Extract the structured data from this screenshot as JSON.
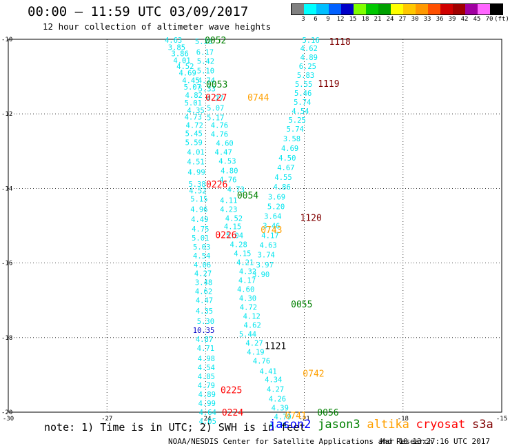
{
  "header": {
    "title": "00:00 – 11:59 UTC 03/09/2017",
    "subtitle": "12 hour collection of altimeter wave heights"
  },
  "colorbar": {
    "labels": [
      "3",
      "6",
      "9",
      "12",
      "15",
      "18",
      "21",
      "24",
      "27",
      "30",
      "33",
      "36",
      "39",
      "42",
      "45",
      "70",
      "(ft)"
    ],
    "colors": [
      "#808080",
      "#00ffff",
      "#00bfff",
      "#0060ff",
      "#0000c8",
      "#80ff00",
      "#00c800",
      "#00a000",
      "#ffff00",
      "#ffc800",
      "#ff9900",
      "#ff5000",
      "#d00000",
      "#a00000",
      "#a000a0",
      "#ff66ff",
      "#000000"
    ]
  },
  "footer": {
    "note": "note: 1) Time is in UTC; 2) SWH is in feet",
    "satellites": [
      {
        "name": "jason2",
        "color": "#0000ff"
      },
      {
        "name": "jason3",
        "color": "#008000"
      },
      {
        "name": "altika",
        "color": "#ffa000"
      },
      {
        "name": "cryosat",
        "color": "#ff0000"
      },
      {
        "name": "s3a",
        "color": "#800000"
      }
    ],
    "credit": "NOAA/NESDIS Center for Satellite Applications and Research",
    "timestamp": "Mar 10 13:27:16 UTC 2017"
  },
  "chart_data": {
    "type": "scatter",
    "title": "12 hour collection of altimeter wave heights",
    "x_ticks": [
      "-30",
      "-27",
      "-24",
      "-21",
      "-18",
      "-15"
    ],
    "y_ticks": [
      "-10",
      "-12",
      "-14",
      "-16",
      "-18",
      "-20"
    ],
    "xlim": [
      -30,
      -15
    ],
    "ylim": [
      -20,
      -10
    ],
    "grid": true,
    "legend_placement": "bottom",
    "unit": "ft",
    "swh_points": [
      {
        "x": -24.98,
        "y": -10.02,
        "v": "4.63"
      },
      {
        "x": -24.88,
        "y": -10.21,
        "v": "3.85"
      },
      {
        "x": -24.78,
        "y": -10.38,
        "v": "3.86"
      },
      {
        "x": -24.72,
        "y": -10.56,
        "v": "4.01"
      },
      {
        "x": -24.62,
        "y": -10.72,
        "v": "4.52"
      },
      {
        "x": -24.55,
        "y": -10.9,
        "v": "4.69"
      },
      {
        "x": -24.45,
        "y": -11.1,
        "v": "4.45"
      },
      {
        "x": -24.4,
        "y": -11.28,
        "v": "5.07"
      },
      {
        "x": -24.36,
        "y": -11.5,
        "v": "4.82"
      },
      {
        "x": -24.38,
        "y": -11.7,
        "v": "5.01"
      },
      {
        "x": -24.3,
        "y": -11.9,
        "v": "4.35"
      },
      {
        "x": -24.38,
        "y": -12.08,
        "v": "4.73"
      },
      {
        "x": -24.34,
        "y": -12.3,
        "v": "4.72"
      },
      {
        "x": -24.36,
        "y": -12.52,
        "v": "5.45"
      },
      {
        "x": -24.36,
        "y": -12.76,
        "v": "5.59"
      },
      {
        "x": -24.3,
        "y": -13.02,
        "v": "4.01"
      },
      {
        "x": -24.3,
        "y": -13.28,
        "v": "4.51"
      },
      {
        "x": -24.28,
        "y": -13.56,
        "v": "4.99"
      },
      {
        "x": -24.26,
        "y": -13.88,
        "v": "5.38"
      },
      {
        "x": -24.24,
        "y": -14.06,
        "v": "4.52"
      },
      {
        "x": -24.2,
        "y": -14.28,
        "v": "5.15"
      },
      {
        "x": -24.2,
        "y": -14.56,
        "v": "4.96"
      },
      {
        "x": -24.18,
        "y": -14.82,
        "v": "4.49"
      },
      {
        "x": -24.16,
        "y": -15.08,
        "v": "4.75"
      },
      {
        "x": -24.16,
        "y": -15.32,
        "v": "5.01"
      },
      {
        "x": -24.12,
        "y": -15.56,
        "v": "5.03"
      },
      {
        "x": -24.12,
        "y": -15.8,
        "v": "4.54"
      },
      {
        "x": -24.1,
        "y": -16.04,
        "v": "4.06"
      },
      {
        "x": -24.08,
        "y": -16.28,
        "v": "4.27"
      },
      {
        "x": -24.06,
        "y": -16.52,
        "v": "3.48"
      },
      {
        "x": -24.06,
        "y": -16.76,
        "v": "4.62"
      },
      {
        "x": -24.04,
        "y": -17.0,
        "v": "4.47"
      },
      {
        "x": -24.04,
        "y": -17.28,
        "v": "4.35"
      },
      {
        "x": -24.0,
        "y": -17.56,
        "v": "5.30"
      },
      {
        "x": -24.04,
        "y": -18.04,
        "v": "4.87"
      },
      {
        "x": -24.0,
        "y": -18.28,
        "v": "4.71"
      },
      {
        "x": -23.98,
        "y": -18.56,
        "v": "4.98"
      },
      {
        "x": -23.98,
        "y": -18.8,
        "v": "4.54"
      },
      {
        "x": -23.98,
        "y": -19.04,
        "v": "4.85"
      },
      {
        "x": -23.98,
        "y": -19.28,
        "v": "4.79"
      },
      {
        "x": -23.96,
        "y": -19.52,
        "v": "4.89"
      },
      {
        "x": -23.96,
        "y": -19.76,
        "v": "4.99"
      },
      {
        "x": -23.94,
        "y": -20.0,
        "v": "4.64"
      },
      {
        "x": -23.94,
        "y": -20.24,
        "v": "4.05"
      },
      {
        "x": -24.06,
        "y": -10.06,
        "v": "5.38"
      },
      {
        "x": -24.02,
        "y": -10.34,
        "v": "6.17"
      },
      {
        "x": -24.0,
        "y": -10.58,
        "v": "5.42"
      },
      {
        "x": -24.0,
        "y": -10.84,
        "v": "5.10"
      },
      {
        "x": -23.98,
        "y": -11.1,
        "v": "4.74"
      },
      {
        "x": -23.96,
        "y": -11.32,
        "v": "5.33"
      },
      {
        "x": -23.72,
        "y": -11.58,
        "v": "4.77"
      },
      {
        "x": -23.7,
        "y": -11.84,
        "v": "5.07"
      },
      {
        "x": -23.7,
        "y": -12.1,
        "v": "5.17"
      },
      {
        "x": -23.58,
        "y": -12.3,
        "v": "4.76"
      },
      {
        "x": -23.58,
        "y": -12.54,
        "v": "4.76"
      },
      {
        "x": -23.42,
        "y": -12.78,
        "v": "4.60"
      },
      {
        "x": -23.46,
        "y": -13.02,
        "v": "4.47"
      },
      {
        "x": -23.34,
        "y": -13.26,
        "v": "4.53"
      },
      {
        "x": -23.28,
        "y": -13.52,
        "v": "4.80"
      },
      {
        "x": -23.32,
        "y": -13.76,
        "v": "4.76"
      },
      {
        "x": -23.08,
        "y": -14.02,
        "v": "4.73"
      },
      {
        "x": -23.3,
        "y": -14.32,
        "v": "4.11"
      },
      {
        "x": -23.3,
        "y": -14.56,
        "v": "4.23"
      },
      {
        "x": -23.14,
        "y": -14.8,
        "v": "4.52"
      },
      {
        "x": -23.18,
        "y": -15.02,
        "v": "4.15"
      },
      {
        "x": -23.12,
        "y": -15.26,
        "v": "5.04"
      },
      {
        "x": -23.0,
        "y": -15.5,
        "v": "4.28"
      },
      {
        "x": -22.88,
        "y": -15.74,
        "v": "4.15"
      },
      {
        "x": -22.8,
        "y": -15.98,
        "v": "4.21"
      },
      {
        "x": -22.72,
        "y": -16.22,
        "v": "4.32"
      },
      {
        "x": -22.74,
        "y": -16.46,
        "v": "4.17"
      },
      {
        "x": -22.78,
        "y": -16.7,
        "v": "4.60"
      },
      {
        "x": -22.72,
        "y": -16.94,
        "v": "4.30"
      },
      {
        "x": -22.7,
        "y": -17.18,
        "v": "4.72"
      },
      {
        "x": -22.6,
        "y": -17.42,
        "v": "4.12"
      },
      {
        "x": -22.58,
        "y": -17.66,
        "v": "4.62"
      },
      {
        "x": -22.72,
        "y": -17.9,
        "v": "5.44"
      },
      {
        "x": -22.52,
        "y": -18.14,
        "v": "4.27"
      },
      {
        "x": -22.48,
        "y": -18.38,
        "v": "4.19"
      },
      {
        "x": -22.3,
        "y": -18.62,
        "v": "4.76"
      },
      {
        "x": -22.1,
        "y": -18.9,
        "v": "4.41"
      },
      {
        "x": -21.94,
        "y": -19.12,
        "v": "4.34"
      },
      {
        "x": -21.88,
        "y": -19.38,
        "v": "4.27"
      },
      {
        "x": -21.82,
        "y": -19.64,
        "v": "4.26"
      },
      {
        "x": -21.74,
        "y": -19.88,
        "v": "4.39"
      },
      {
        "x": -21.66,
        "y": -20.12,
        "v": "4.79"
      },
      {
        "x": -21.8,
        "y": -20.34,
        "v": "4.76"
      },
      {
        "x": -20.8,
        "y": -10.02,
        "v": "5.16"
      },
      {
        "x": -20.86,
        "y": -10.24,
        "v": "4.62"
      },
      {
        "x": -20.86,
        "y": -10.48,
        "v": "4.89"
      },
      {
        "x": -20.9,
        "y": -10.72,
        "v": "6.25"
      },
      {
        "x": -20.96,
        "y": -10.96,
        "v": "5.83"
      },
      {
        "x": -21.02,
        "y": -11.2,
        "v": "5.55"
      },
      {
        "x": -21.04,
        "y": -11.44,
        "v": "5.46"
      },
      {
        "x": -21.06,
        "y": -11.68,
        "v": "5.74"
      },
      {
        "x": -21.12,
        "y": -11.92,
        "v": "4.54"
      },
      {
        "x": -21.22,
        "y": -12.16,
        "v": "5.25"
      },
      {
        "x": -21.28,
        "y": -12.4,
        "v": "5.74"
      },
      {
        "x": -21.38,
        "y": -12.66,
        "v": "3.58"
      },
      {
        "x": -21.44,
        "y": -12.92,
        "v": "4.69"
      },
      {
        "x": -21.52,
        "y": -13.18,
        "v": "4.50"
      },
      {
        "x": -21.56,
        "y": -13.44,
        "v": "4.67"
      },
      {
        "x": -21.64,
        "y": -13.7,
        "v": "4.55"
      },
      {
        "x": -21.68,
        "y": -13.96,
        "v": "4.86"
      },
      {
        "x": -21.84,
        "y": -14.22,
        "v": "3.69"
      },
      {
        "x": -21.86,
        "y": -14.48,
        "v": "5.20"
      },
      {
        "x": -21.96,
        "y": -14.74,
        "v": "3.64"
      },
      {
        "x": -22.0,
        "y": -15.0,
        "v": "3.46"
      },
      {
        "x": -22.04,
        "y": -15.26,
        "v": "4.17"
      },
      {
        "x": -22.1,
        "y": -15.52,
        "v": "4.63"
      },
      {
        "x": -22.16,
        "y": -15.78,
        "v": "3.74"
      },
      {
        "x": -22.2,
        "y": -16.04,
        "v": "3.97"
      },
      {
        "x": -22.32,
        "y": -16.3,
        "v": "3.90"
      },
      {
        "x": -24.06,
        "y": -17.8,
        "v": "10.35"
      }
    ],
    "passes": [
      {
        "id": "0052",
        "x": -23.7,
        "y": -10.02,
        "sat": "jason3"
      },
      {
        "id": "0053",
        "x": -23.66,
        "y": -11.2,
        "sat": "jason3"
      },
      {
        "id": "0227",
        "x": -23.68,
        "y": -11.55,
        "sat": "cryosat"
      },
      {
        "id": "0744",
        "x": -22.4,
        "y": -11.55,
        "sat": "altika"
      },
      {
        "id": "0226",
        "x": -23.66,
        "y": -13.88,
        "sat": "cryosat"
      },
      {
        "id": "0054",
        "x": -22.72,
        "y": -14.18,
        "sat": "jason3"
      },
      {
        "id": "0743",
        "x": -22.0,
        "y": -15.1,
        "sat": "altika"
      },
      {
        "id": "0226",
        "x": -23.38,
        "y": -15.24,
        "sat": "cryosat"
      },
      {
        "id": "0055",
        "x": -21.08,
        "y": -17.1,
        "sat": "jason3"
      },
      {
        "id": "0225",
        "x": -23.22,
        "y": -19.4,
        "sat": "cryosat"
      },
      {
        "id": "0224",
        "x": -23.18,
        "y": -20.0,
        "sat": "cryosat"
      },
      {
        "id": "0056",
        "x": -20.28,
        "y": -20.0,
        "sat": "jason3"
      },
      {
        "id": "0742",
        "x": -20.72,
        "y": -18.96,
        "sat": "altika"
      },
      {
        "id": "0741",
        "x": -21.26,
        "y": -20.08,
        "sat": "altika"
      },
      {
        "id": "1118",
        "x": -19.92,
        "y": -10.06,
        "sat": "s3a"
      },
      {
        "id": "1119",
        "x": -20.26,
        "y": -11.18,
        "sat": "s3a"
      },
      {
        "id": "1120",
        "x": -20.8,
        "y": -14.78,
        "sat": "s3a"
      },
      {
        "id": "1121",
        "x": -21.88,
        "y": -18.22,
        "sat": "black"
      }
    ]
  }
}
